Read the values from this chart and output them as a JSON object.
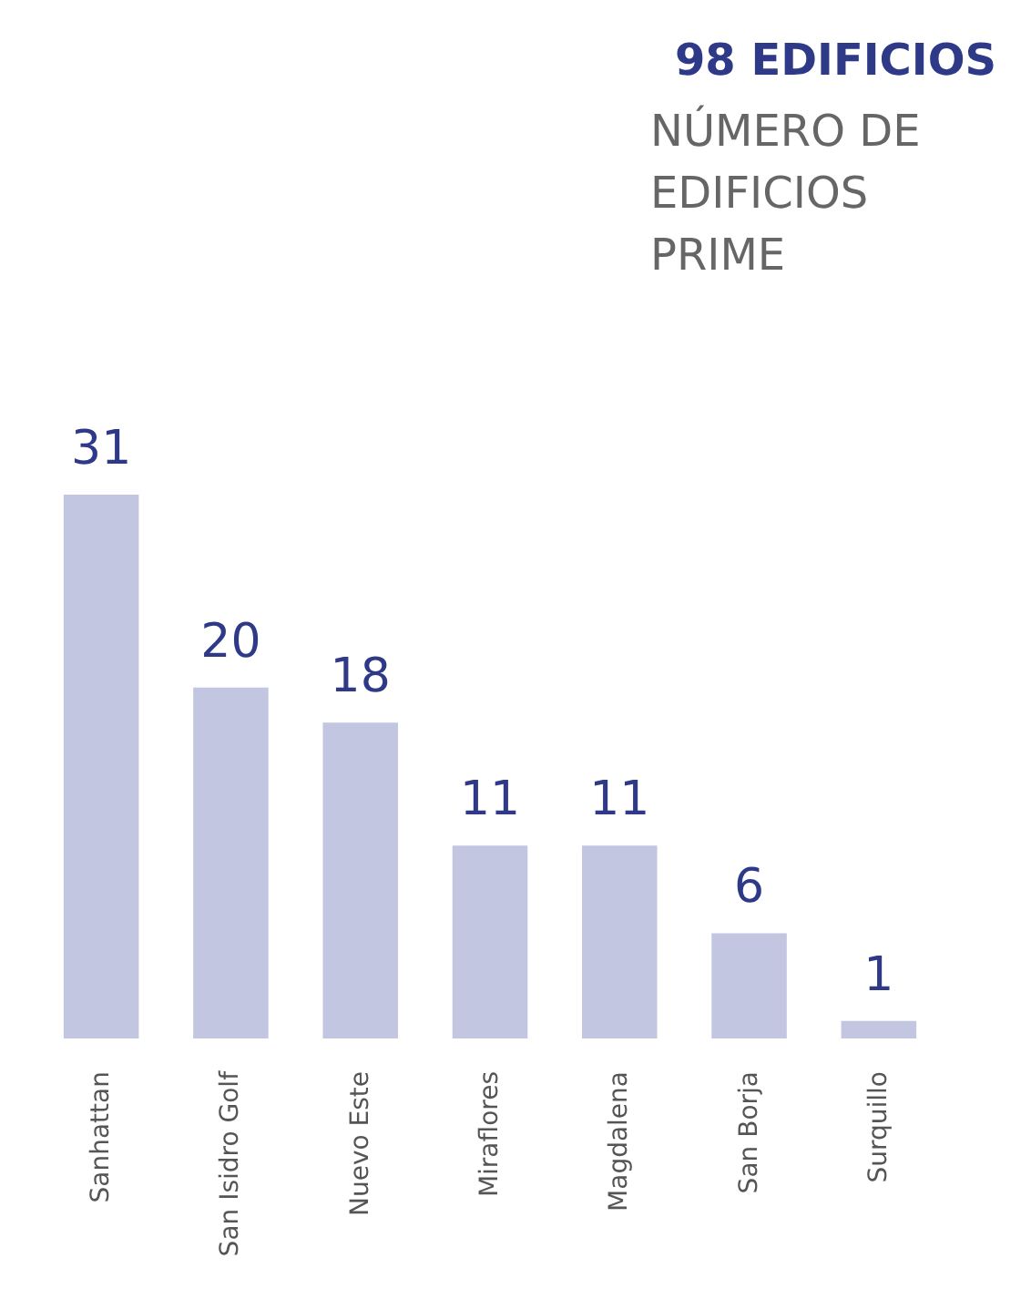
{
  "chart_data": {
    "type": "bar",
    "title": "98 EDIFICIOS",
    "subtitle": "NÚMERO DE EDIFICIOS PRIME",
    "categories": [
      "Sanhattan",
      "San Isidro Golf",
      "Nuevo Este",
      "Miraflores",
      "Magdalena",
      "San Borja",
      "Surquillo"
    ],
    "values": [
      31,
      20,
      18,
      11,
      11,
      6,
      1
    ],
    "color": "#c3c6e0",
    "data_labels": true,
    "tick_labels": "x"
  }
}
